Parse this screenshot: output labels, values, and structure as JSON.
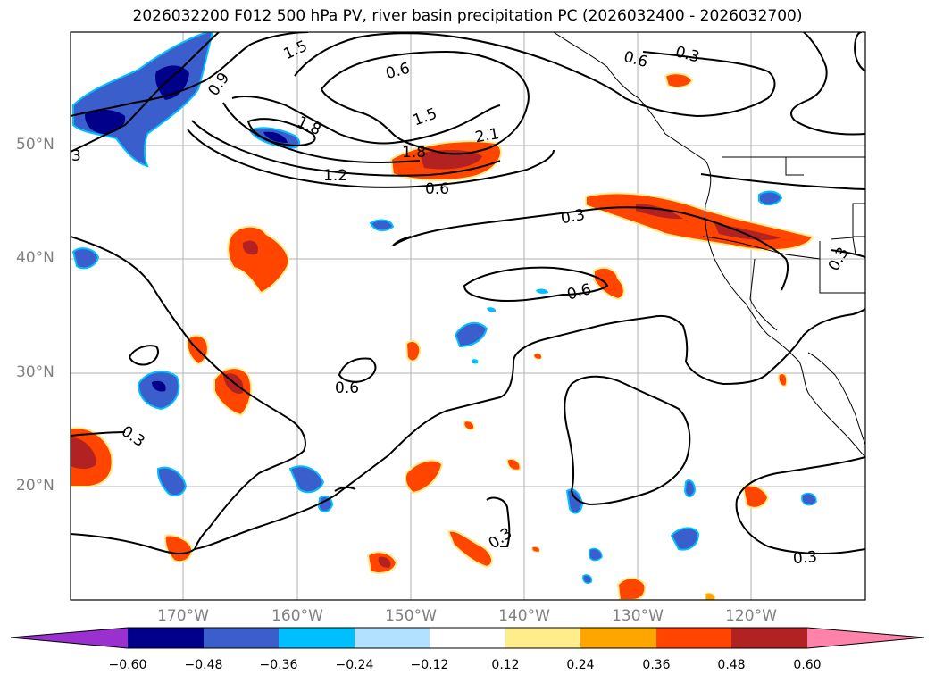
{
  "title": "2026032200 F012 500 hPa PV, river basin precipitation PC (2026032400 - 2026032700)",
  "map": {
    "lat_labels": [
      "50°N",
      "40°N",
      "30°N",
      "20°N"
    ],
    "lon_labels": [
      "170°W",
      "160°W",
      "150°W",
      "140°W",
      "130°W",
      "120°W"
    ],
    "contour_labels": [
      "0.3",
      "0.6",
      "0.9",
      "1.2",
      "1.5",
      "1.8",
      "2.1"
    ],
    "contour_label_items": [
      {
        "text": "3"
      },
      {
        "text": "0.9"
      },
      {
        "text": "1.5"
      },
      {
        "text": "0.6"
      },
      {
        "text": "0.6"
      },
      {
        "text": "0.3"
      },
      {
        "text": "1.8"
      },
      {
        "text": "1.5"
      },
      {
        "text": "2.1"
      },
      {
        "text": "1.8"
      },
      {
        "text": "1.2"
      },
      {
        "text": "0.6"
      },
      {
        "text": "0.3"
      },
      {
        "text": "0.6"
      },
      {
        "text": "0.6"
      },
      {
        "text": "0.3"
      },
      {
        "text": "0.3"
      },
      {
        "text": "0.3"
      },
      {
        "text": "0.3"
      }
    ]
  },
  "colorbar": {
    "ticks": [
      "−0.60",
      "−0.48",
      "−0.36",
      "−0.24",
      "−0.12",
      "0.12",
      "0.24",
      "0.36",
      "0.48",
      "0.60"
    ],
    "colors": [
      "#9b30d0",
      "#00008b",
      "#3a5fcd",
      "#00bfff",
      "#b0e2ff",
      "#ffffff",
      "#ffec8b",
      "#ffa500",
      "#ff4500",
      "#b22222",
      "#ff82ab"
    ]
  }
}
